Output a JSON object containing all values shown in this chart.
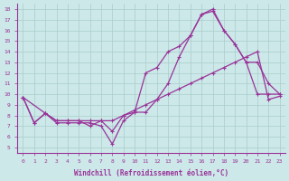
{
  "bg_color": "#cce8e8",
  "line_color": "#993399",
  "grid_color": "#aacccc",
  "xlabel": "Windchill (Refroidissement éolien,°C)",
  "xlabel_color": "#993399",
  "ylabel_ticks": [
    5,
    6,
    7,
    8,
    9,
    10,
    11,
    12,
    13,
    14,
    15,
    16,
    17,
    18
  ],
  "xlim": [
    -0.5,
    23.5
  ],
  "ylim": [
    4.5,
    18.5
  ],
  "xticks": [
    0,
    1,
    2,
    3,
    4,
    5,
    6,
    7,
    8,
    9,
    10,
    11,
    12,
    13,
    14,
    15,
    16,
    17,
    18,
    19,
    20,
    21,
    22,
    23
  ],
  "series1_x": [
    0,
    1,
    2,
    3,
    4,
    5,
    6,
    7,
    8,
    9,
    10,
    11,
    12,
    13,
    14,
    15,
    16,
    17,
    18,
    19,
    20,
    21,
    22,
    23
  ],
  "series1_y": [
    9.7,
    7.3,
    8.2,
    7.3,
    7.3,
    7.3,
    7.3,
    7.0,
    5.3,
    7.5,
    8.3,
    8.3,
    9.5,
    11.0,
    13.5,
    15.5,
    17.5,
    17.8,
    16.0,
    14.7,
    13.0,
    13.0,
    11.0,
    10.0
  ],
  "series2_x": [
    0,
    2,
    3,
    4,
    5,
    6,
    7,
    8,
    9,
    10,
    11,
    12,
    13,
    14,
    15,
    16,
    17,
    18,
    19,
    20,
    21,
    22,
    23
  ],
  "series2_y": [
    9.7,
    8.2,
    7.5,
    7.5,
    7.5,
    7.0,
    7.5,
    6.5,
    8.0,
    8.3,
    12.0,
    12.5,
    14.0,
    14.5,
    15.5,
    17.5,
    18.0,
    16.0,
    14.7,
    13.0,
    10.0,
    10.0,
    10.0
  ],
  "series3_x": [
    0,
    1,
    2,
    3,
    4,
    5,
    6,
    7,
    8,
    9,
    10,
    11,
    12,
    13,
    14,
    15,
    16,
    17,
    18,
    19,
    20,
    21,
    22,
    23
  ],
  "series3_y": [
    9.7,
    7.3,
    8.2,
    7.5,
    7.5,
    7.5,
    7.5,
    7.5,
    7.5,
    8.0,
    8.5,
    9.0,
    9.5,
    10.0,
    10.5,
    11.0,
    11.5,
    12.0,
    12.5,
    13.0,
    13.5,
    14.0,
    9.5,
    9.8
  ]
}
